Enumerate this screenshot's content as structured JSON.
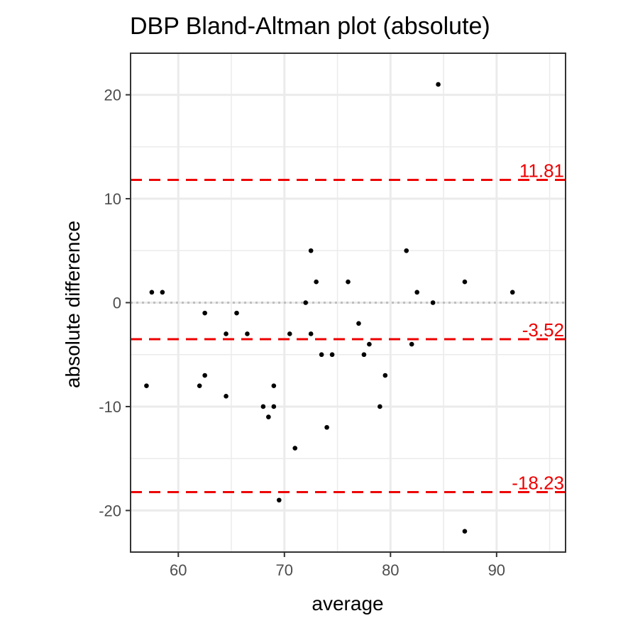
{
  "chart_data": {
    "type": "scatter",
    "title": "DBP   Bland-Altman plot (absolute)",
    "xlabel": "average",
    "ylabel": "absolute difference",
    "xlim": [
      55.5,
      96.5
    ],
    "ylim": [
      -24,
      24
    ],
    "x_ticks": [
      60,
      70,
      80,
      90
    ],
    "x_tick_labels": [
      "60",
      "70",
      "80",
      "90"
    ],
    "x_minor_ticks": [
      55,
      65,
      75,
      85,
      95
    ],
    "y_ticks": [
      -20,
      -10,
      0,
      10,
      20
    ],
    "y_tick_labels": [
      "-20",
      "-10",
      "0",
      "10",
      "20"
    ],
    "y_minor_ticks": [
      -15,
      -5,
      5,
      15
    ],
    "grid": true,
    "points": [
      {
        "x": 57.0,
        "y": -8
      },
      {
        "x": 57.5,
        "y": 1
      },
      {
        "x": 58.5,
        "y": 1
      },
      {
        "x": 62.0,
        "y": -8
      },
      {
        "x": 62.5,
        "y": -1
      },
      {
        "x": 62.5,
        "y": -7
      },
      {
        "x": 64.5,
        "y": -3
      },
      {
        "x": 64.5,
        "y": -9
      },
      {
        "x": 65.5,
        "y": -1
      },
      {
        "x": 66.5,
        "y": -3
      },
      {
        "x": 68.0,
        "y": -10
      },
      {
        "x": 68.5,
        "y": -11
      },
      {
        "x": 69.0,
        "y": -8
      },
      {
        "x": 69.0,
        "y": -10
      },
      {
        "x": 69.5,
        "y": -19
      },
      {
        "x": 70.5,
        "y": -3
      },
      {
        "x": 71.0,
        "y": -14
      },
      {
        "x": 72.0,
        "y": 0
      },
      {
        "x": 72.5,
        "y": 5
      },
      {
        "x": 72.5,
        "y": -3
      },
      {
        "x": 73.0,
        "y": 2
      },
      {
        "x": 73.5,
        "y": -5
      },
      {
        "x": 74.0,
        "y": -12
      },
      {
        "x": 74.5,
        "y": -5
      },
      {
        "x": 76.0,
        "y": 2
      },
      {
        "x": 77.0,
        "y": -2
      },
      {
        "x": 77.5,
        "y": -5
      },
      {
        "x": 78.0,
        "y": -4
      },
      {
        "x": 79.0,
        "y": -10
      },
      {
        "x": 79.5,
        "y": -7
      },
      {
        "x": 81.5,
        "y": 5
      },
      {
        "x": 82.0,
        "y": -4
      },
      {
        "x": 82.5,
        "y": 1
      },
      {
        "x": 84.0,
        "y": 0
      },
      {
        "x": 84.5,
        "y": 21
      },
      {
        "x": 87.0,
        "y": 2
      },
      {
        "x": 87.0,
        "y": -22
      },
      {
        "x": 91.5,
        "y": 1
      }
    ],
    "reference_lines": [
      {
        "y": 11.81,
        "label": "11.81",
        "color": "#ee0000",
        "style": "dashed"
      },
      {
        "y": -3.52,
        "label": "-3.52",
        "color": "#ee0000",
        "style": "dashed"
      },
      {
        "y": -18.23,
        "label": "-18.23",
        "color": "#ee0000",
        "style": "dashed"
      }
    ],
    "zero_line": {
      "y": 0,
      "color": "#bebebe",
      "style": "dotted"
    },
    "colors": {
      "points": "#000000",
      "grid": "#ebebeb",
      "panel_border": "#333333",
      "tick_text": "#4d4d4d"
    }
  }
}
